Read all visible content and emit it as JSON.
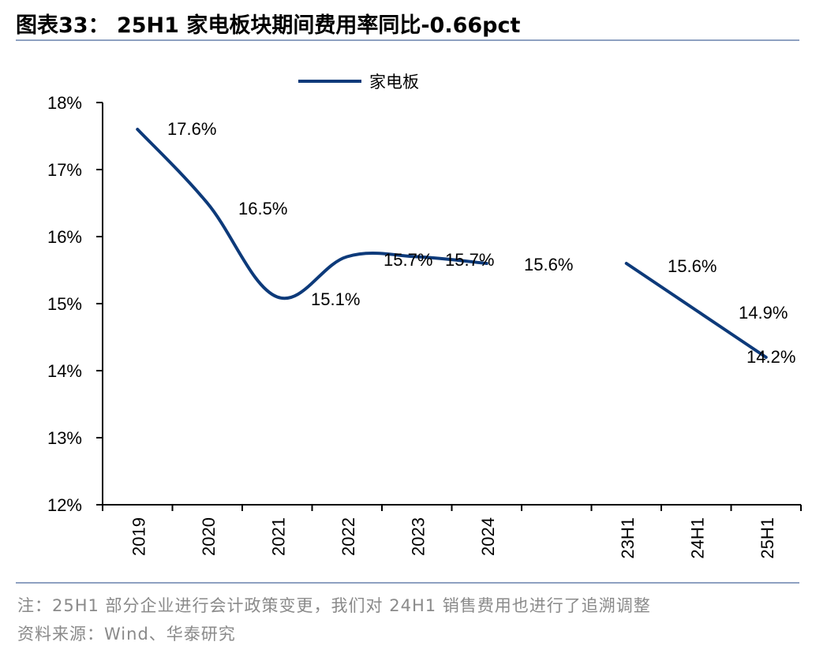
{
  "title": "图表33： 25H1 家电板块期间费用率同比-0.66pct",
  "notes": {
    "note": "注：25H1 部分企业进行会计政策变更，我们对 24H1 销售费用也进行了追溯调整",
    "source": "资料来源：Wind、华泰研究"
  },
  "chart_data": {
    "type": "line",
    "title": "",
    "xlabel": "",
    "ylabel": "",
    "ylim": [
      12,
      18
    ],
    "yticks": [
      "12%",
      "13%",
      "14%",
      "15%",
      "16%",
      "17%",
      "18%"
    ],
    "categories": [
      "2019",
      "2020",
      "2021",
      "2022",
      "2023",
      "2024",
      "",
      "23H1",
      "24H1",
      "25H1"
    ],
    "legend": {
      "position": "top-center",
      "entries": [
        "家电板"
      ]
    },
    "series": [
      {
        "name": "家电板",
        "color": "#0d3a7a",
        "segments": [
          {
            "x": [
              "2019",
              "2020",
              "2021",
              "2022",
              "2023",
              "2024"
            ],
            "y": [
              17.6,
              16.5,
              15.1,
              15.7,
              15.7,
              15.6
            ]
          },
          {
            "x": [
              "23H1",
              "24H1",
              "25H1"
            ],
            "y": [
              15.6,
              14.9,
              14.2
            ]
          }
        ]
      }
    ],
    "data_labels": [
      {
        "category": "2019",
        "text": "17.6%"
      },
      {
        "category": "2020",
        "text": "16.5%"
      },
      {
        "category": "2021",
        "text": "15.1%"
      },
      {
        "category": "2022",
        "text": "15.7%"
      },
      {
        "category": "2023",
        "text": "15.7%"
      },
      {
        "category": "2024",
        "text": "15.6%"
      },
      {
        "category": "23H1",
        "text": "15.6%"
      },
      {
        "category": "24H1",
        "text": "14.9%"
      },
      {
        "category": "25H1",
        "text": "14.2%"
      }
    ],
    "grid": false
  }
}
